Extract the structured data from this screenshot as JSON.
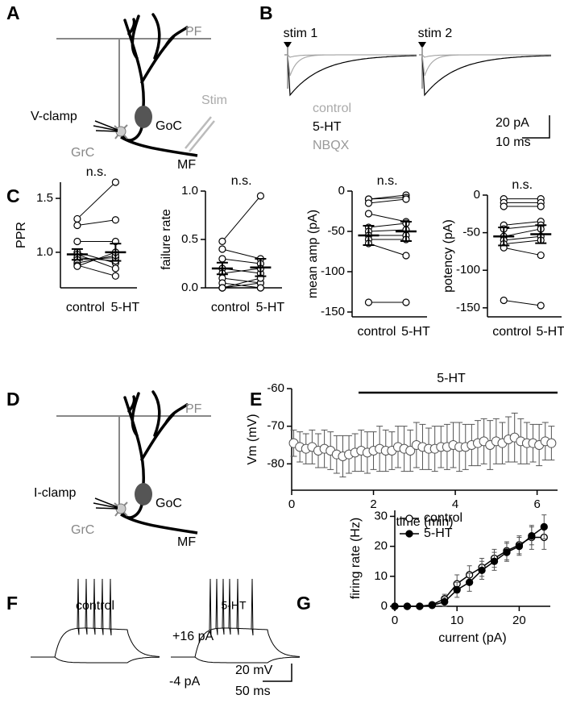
{
  "panel_labels": [
    "A",
    "B",
    "C",
    "D",
    "E",
    "F",
    "G"
  ],
  "diagram_a": {
    "pf": "PF",
    "clamp": "V-clamp",
    "goc": "GoC",
    "stim": "Stim",
    "grc": "GrC",
    "mf": "MF"
  },
  "traces_b": {
    "stim_1": "stim 1",
    "stim_2": "stim 2",
    "legend": [
      "control",
      "5-HT",
      "NBQX"
    ],
    "scale_y": "20 pA",
    "scale_x": "10 ms"
  },
  "diagram_d": {
    "pf": "PF",
    "clamp": "I-clamp",
    "goc": "GoC",
    "grc": "GrC",
    "mf": "MF"
  },
  "traces_f": {
    "left": "control",
    "right": "5-HT",
    "step_up": "+16 pA",
    "step_down": "-4 pA",
    "scale_y": "20 mV",
    "scale_x": "50 ms"
  },
  "chart_data": [
    {
      "type": "paired",
      "ylabel": "PPR",
      "annotation": "n.s.",
      "categories": [
        "control",
        "5-HT"
      ],
      "values": [
        [
          1.31,
          1.25,
          1.1,
          1.0,
          0.98,
          0.95,
          0.93,
          0.9,
          0.88,
          0.87
        ],
        [
          1.65,
          1.3,
          1.1,
          0.9,
          0.85,
          0.92,
          0.95,
          0.97,
          0.78,
          1.0
        ]
      ],
      "means": [
        0.98,
        1.0
      ],
      "sems": [
        0.05,
        0.08
      ],
      "ylim": [
        0.67,
        1.65
      ],
      "yticks": [
        {
          "value": 1.0,
          "label": "1.0"
        },
        1.5
      ]
    },
    {
      "type": "paired",
      "ylabel": "failure rate",
      "annotation": "n.s.",
      "categories": [
        "control",
        "5-HT"
      ],
      "values": [
        [
          0.48,
          0.4,
          0.3,
          0.2,
          0.15,
          0.1,
          0.05,
          0,
          0,
          0
        ],
        [
          0.95,
          0.3,
          0.25,
          0.15,
          0.2,
          0.05,
          0,
          0.05,
          0,
          0.1
        ]
      ],
      "means": [
        0.2,
        0.21
      ],
      "sems": [
        0.06,
        0.09
      ],
      "ylim": [
        0,
        1
      ],
      "yticks": [
        {
          "value": 0,
          "label": "0.0"
        },
        0.5,
        {
          "value": 1,
          "label": "1.0"
        }
      ]
    },
    {
      "type": "paired",
      "ylabel": "mean amp (pA)",
      "annotation": "n.s.",
      "categories": [
        "control",
        "5-HT"
      ],
      "values": [
        [
          -10,
          -10,
          -15,
          -28,
          -45,
          -50,
          -55,
          -60,
          -65,
          -138
        ],
        [
          -5,
          -8,
          -10,
          -38,
          -40,
          -48,
          -55,
          -60,
          -80,
          -138
        ]
      ],
      "means": [
        -55,
        -50
      ],
      "sems": [
        12,
        12
      ],
      "ylim": [
        -156,
        0
      ],
      "yticks": [
        0,
        -50,
        -100,
        -150
      ]
    },
    {
      "type": "paired",
      "ylabel": "potency (pA)",
      "annotation": "n.s.",
      "categories": [
        "control",
        "5-HT"
      ],
      "values": [
        [
          -5,
          -10,
          -15,
          -40,
          -45,
          -55,
          -60,
          -65,
          -70,
          -140
        ],
        [
          -5,
          -10,
          -15,
          -35,
          -40,
          -45,
          -55,
          -60,
          -80,
          -147
        ]
      ],
      "means": [
        -55,
        -52
      ],
      "sems": [
        12,
        12
      ],
      "ylim": [
        -162,
        0
      ],
      "yticks": [
        0,
        -50,
        -100,
        -150
      ]
    },
    {
      "type": "scatter",
      "ylabel": "Vm (mV)",
      "xlabel": "time (min)",
      "annotation": "5-HT",
      "x": [
        0.05,
        0.2,
        0.35,
        0.5,
        0.65,
        0.8,
        0.95,
        1.1,
        1.25,
        1.4,
        1.55,
        1.7,
        1.85,
        2.0,
        2.15,
        2.3,
        2.45,
        2.6,
        2.75,
        2.9,
        3.05,
        3.2,
        3.35,
        3.5,
        3.65,
        3.8,
        3.95,
        4.1,
        4.25,
        4.4,
        4.55,
        4.7,
        4.85,
        5.0,
        5.15,
        5.3,
        5.45,
        5.6,
        5.75,
        5.9,
        6.05,
        6.2,
        6.35
      ],
      "values": [
        -74.5,
        -75.5,
        -76,
        -75.5,
        -76.5,
        -76,
        -76.5,
        -77.5,
        -78,
        -77.5,
        -77,
        -76.5,
        -77,
        -76.5,
        -76,
        -76.5,
        -76.5,
        -75.5,
        -76,
        -76.5,
        -75,
        -75.5,
        -76,
        -76,
        -75.5,
        -75.5,
        -75,
        -75.5,
        -75.5,
        -75,
        -74.5,
        -74,
        -75,
        -74,
        -74.5,
        -73.5,
        -73,
        -74,
        -74.5,
        -74.5,
        -75,
        -74,
        -74.5
      ],
      "errors": [
        3.5,
        4,
        4,
        4.5,
        4.5,
        5,
        5,
        5,
        5.5,
        5,
        5,
        5.5,
        5.5,
        5,
        6,
        5.5,
        5,
        5.5,
        6,
        5.5,
        6,
        6,
        5.5,
        6,
        5.5,
        6,
        6,
        6.5,
        6,
        5.5,
        6,
        6,
        6.5,
        6,
        5.5,
        6,
        6.5,
        6,
        5.5,
        5,
        5.5,
        5,
        4.5
      ],
      "xlim": [
        0,
        6.5
      ],
      "ylim": [
        -87,
        -60
      ],
      "xticks": [
        0,
        2,
        4,
        6
      ],
      "yticks": [
        -80,
        -70,
        -60
      ]
    },
    {
      "type": "line",
      "ylabel": "firing rate (Hz)",
      "xlabel": "current (pA)",
      "x": [
        0,
        2,
        4,
        6,
        8,
        10,
        12,
        14,
        16,
        18,
        20,
        22,
        24
      ],
      "series": [
        {
          "name": "control",
          "color": "#000000",
          "marker_fill": "#ffffff",
          "values": [
            0,
            0,
            0,
            0.5,
            2.5,
            7.5,
            10.5,
            13,
            16,
            18.5,
            20.5,
            23,
            23
          ],
          "errors": [
            0,
            0,
            0,
            0.5,
            1.5,
            3,
            3,
            3,
            3,
            3,
            3,
            4,
            4
          ]
        },
        {
          "name": "5-HT",
          "color": "#000000",
          "marker_fill": "#000000",
          "values": [
            0,
            0,
            0,
            0.3,
            1.5,
            5.5,
            8,
            12,
            15,
            18,
            20,
            23.5,
            26.5
          ],
          "errors": [
            0,
            0,
            0,
            0.5,
            1.5,
            2.5,
            3,
            3,
            3,
            3,
            3,
            3,
            4
          ]
        }
      ],
      "xlim": [
        0,
        25
      ],
      "ylim": [
        0,
        32
      ],
      "xticks": [
        0,
        10,
        20
      ],
      "yticks": [
        0,
        10,
        20,
        30
      ],
      "legend": "upper left"
    }
  ]
}
